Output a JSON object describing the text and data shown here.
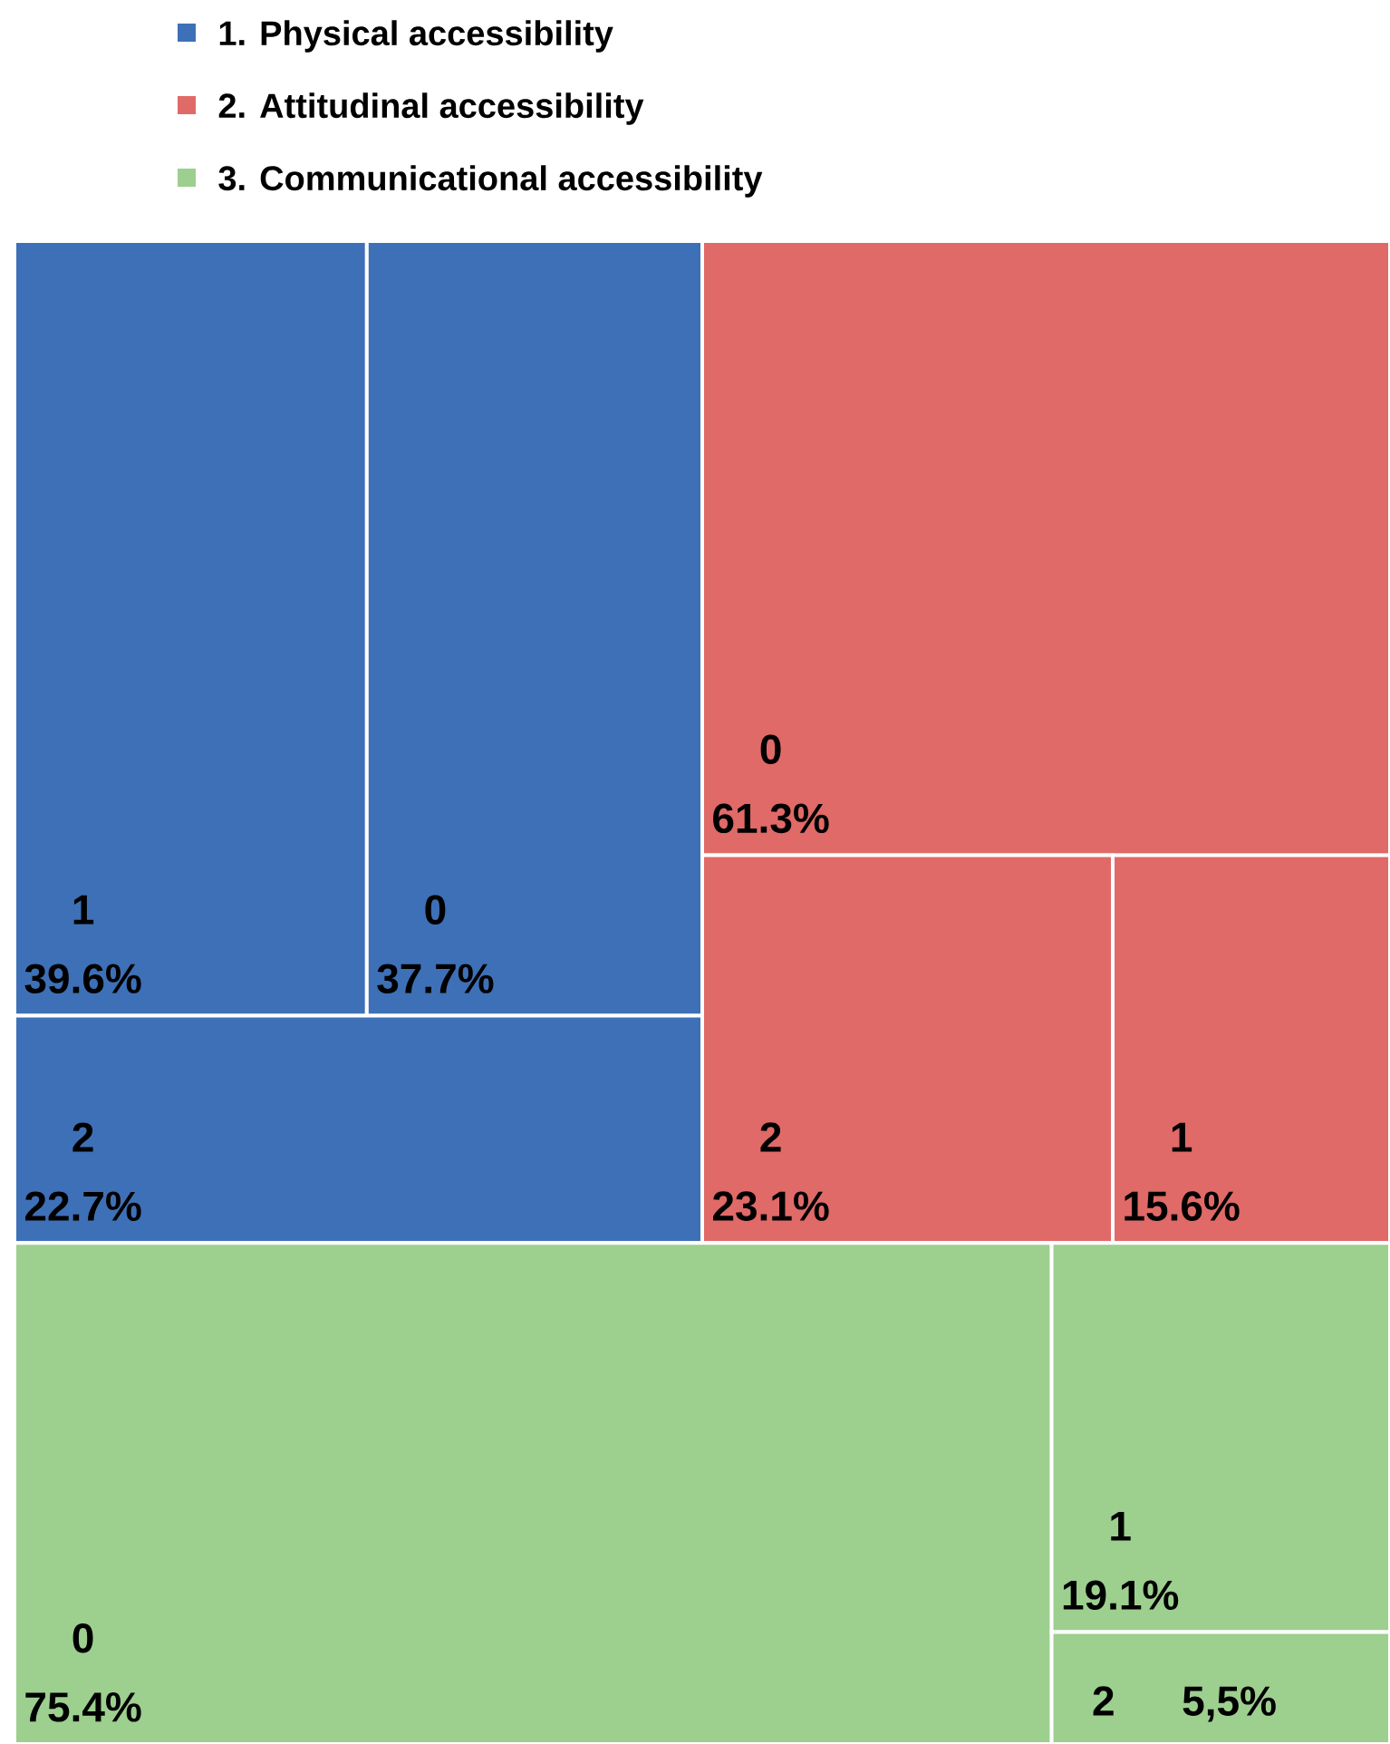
{
  "chart_data": {
    "type": "other",
    "legend": "top",
    "categories": [
      "0",
      "1",
      "2"
    ],
    "series": [
      {
        "name": "1. Physical accessibility",
        "color": "#3e70b7",
        "values": [
          37.7,
          39.6,
          22.7
        ],
        "value_labels": [
          "37.7%",
          "39.6%",
          "22.7%"
        ]
      },
      {
        "name": "2. Attitudinal accessibility",
        "color": "#e06a67",
        "values": [
          61.3,
          15.6,
          23.1
        ],
        "value_labels": [
          "61.3%",
          "15.6%",
          "23.1%"
        ]
      },
      {
        "name": "3. Communicational accessibility",
        "color": "#9dcf8f",
        "values": [
          75.4,
          19.1,
          5.5
        ],
        "value_labels": [
          "75.4%",
          "19.1%",
          "5,5%"
        ]
      }
    ]
  }
}
